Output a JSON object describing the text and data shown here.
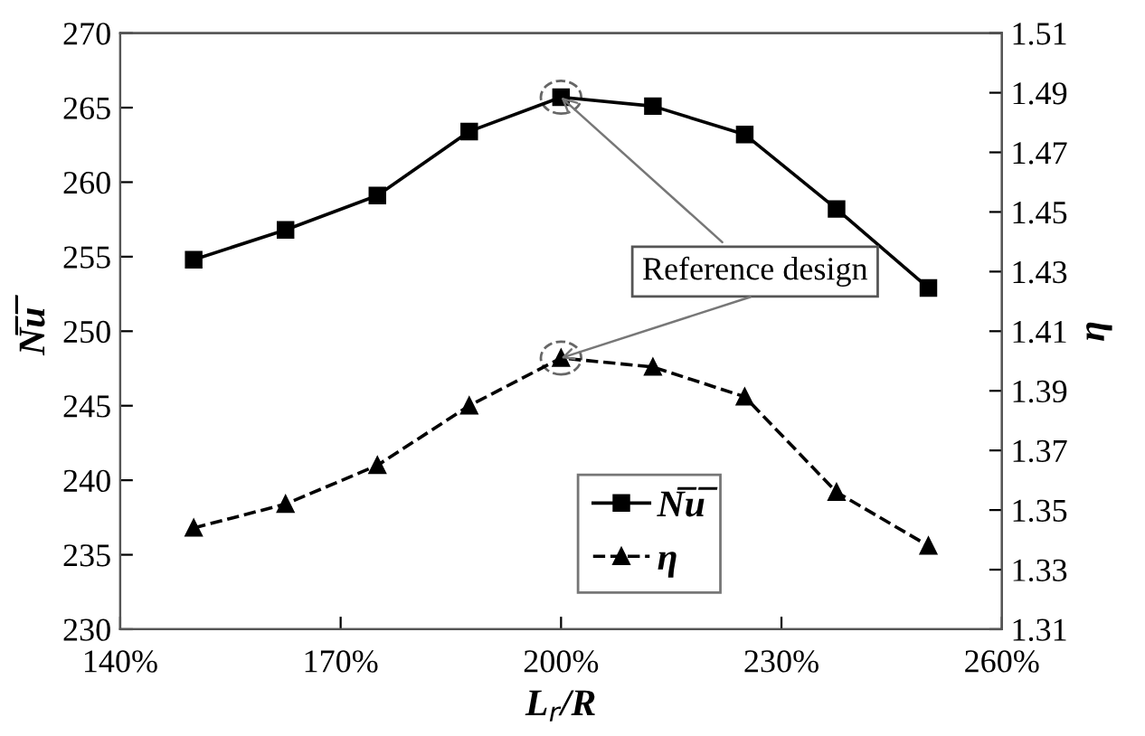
{
  "chart_data": {
    "type": "line",
    "xlabel": "L$_{r}$/R",
    "ylabel": "N̅u̅",
    "y2label": "η",
    "x": [
      150,
      162.5,
      175,
      187.5,
      200,
      212.5,
      225,
      237.5,
      250
    ],
    "series": [
      {
        "name": "N̅u̅",
        "color": "#000000",
        "marker": "square",
        "line_style": "solid",
        "values": [
          254.8,
          256.8,
          259.1,
          263.4,
          265.7,
          265.1,
          263.2,
          258.2,
          252.9
        ]
      },
      {
        "name": "η",
        "color": "#000000",
        "marker": "triangle",
        "line_style": "dashed",
        "axis": "y2",
        "values": [
          1.344,
          1.352,
          1.365,
          1.385,
          1.401,
          1.398,
          1.388,
          1.356,
          1.338
        ]
      }
    ],
    "xlim": [
      140,
      260
    ],
    "xticks": [
      {
        "value": 140,
        "label": "140%"
      },
      {
        "value": 170,
        "label": "170%"
      },
      {
        "value": 200,
        "label": "200%"
      },
      {
        "value": 230,
        "label": "230%"
      },
      {
        "value": 260,
        "label": "260%"
      }
    ],
    "ylim": [
      230,
      270
    ],
    "yticks": [
      230,
      235,
      240,
      245,
      250,
      255,
      260,
      265,
      270
    ],
    "y2lim": [
      1.31,
      1.51
    ],
    "y2ticks": [
      1.31,
      1.33,
      1.35,
      1.37,
      1.39,
      1.41,
      1.43,
      1.45,
      1.47,
      1.49,
      1.51
    ],
    "annotations": [
      {
        "text": "Reference design",
        "x": 200,
        "y": 265.7
      }
    ],
    "legend": "bottom",
    "grid": false
  }
}
